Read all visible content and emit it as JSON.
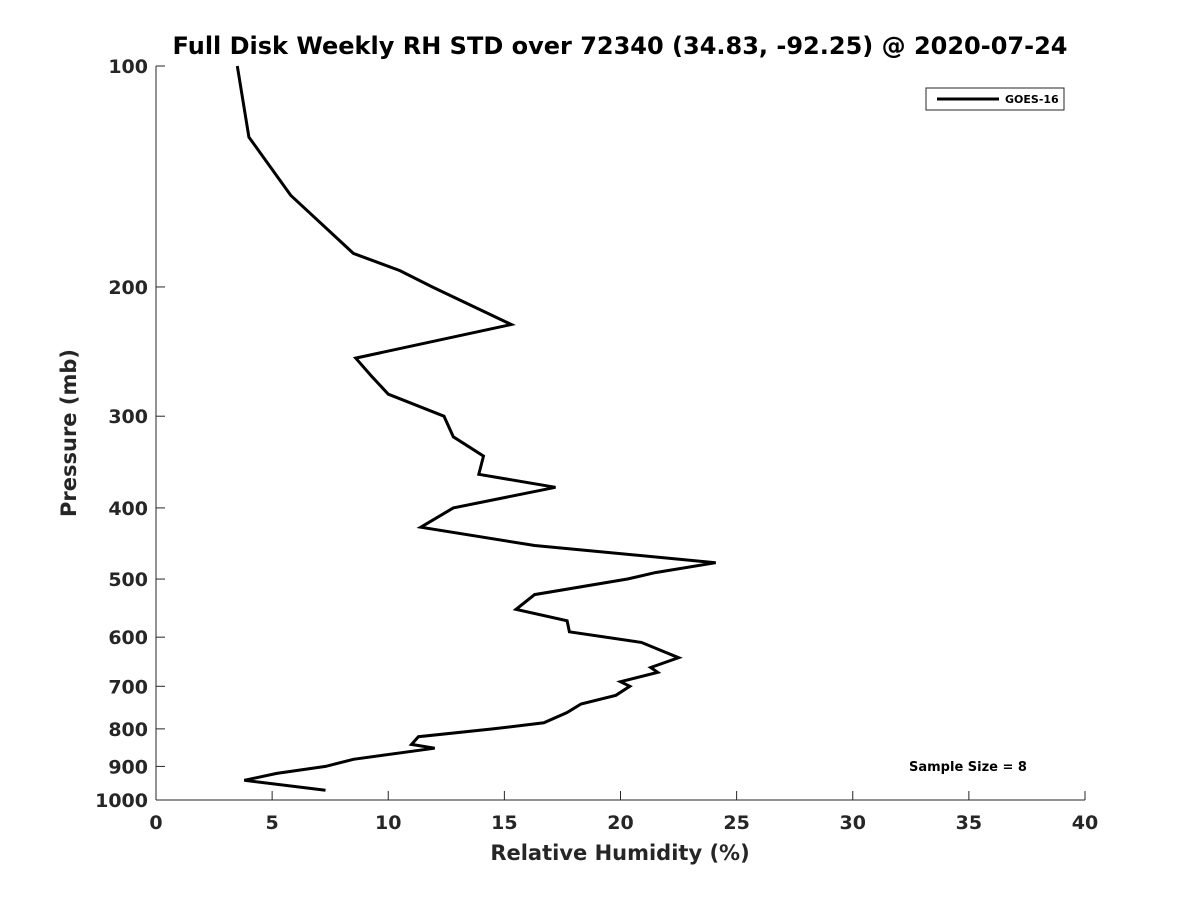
{
  "chart_data": {
    "type": "line",
    "title": "Full Disk Weekly RH STD over 72340 (34.83, -92.25) @ 2020-07-24",
    "xlabel": "Relative Humidity (%)",
    "ylabel": "Pressure (mb)",
    "xlim": [
      0,
      40
    ],
    "ylim": [
      100,
      1000
    ],
    "y_scale": "log",
    "y_reversed": true,
    "grid": false,
    "x_ticks": [
      0,
      5,
      10,
      15,
      20,
      25,
      30,
      35,
      40
    ],
    "y_ticks": [
      100,
      200,
      300,
      400,
      500,
      600,
      700,
      800,
      900,
      1000
    ],
    "legend_position": "top-right",
    "annotation": "Sample Size = 8",
    "series": [
      {
        "name": "GOES-16",
        "color": "#000000",
        "points": [
          [
            3.5,
            100
          ],
          [
            4.0,
            125
          ],
          [
            5.8,
            150
          ],
          [
            8.5,
            180
          ],
          [
            10.5,
            190
          ],
          [
            11.9,
            200
          ],
          [
            15.3,
            225
          ],
          [
            8.6,
            250
          ],
          [
            9.3,
            265
          ],
          [
            10.0,
            280
          ],
          [
            12.4,
            300
          ],
          [
            12.8,
            320
          ],
          [
            14.1,
            340
          ],
          [
            13.9,
            360
          ],
          [
            17.2,
            375
          ],
          [
            12.8,
            400
          ],
          [
            11.4,
            425
          ],
          [
            16.3,
            450
          ],
          [
            24.1,
            475
          ],
          [
            21.5,
            490
          ],
          [
            20.3,
            500
          ],
          [
            16.3,
            525
          ],
          [
            15.5,
            550
          ],
          [
            17.7,
            570
          ],
          [
            17.8,
            590
          ],
          [
            20.9,
            610
          ],
          [
            22.5,
            640
          ],
          [
            21.3,
            660
          ],
          [
            21.6,
            670
          ],
          [
            20.0,
            690
          ],
          [
            20.4,
            700
          ],
          [
            19.8,
            720
          ],
          [
            18.3,
            740
          ],
          [
            17.7,
            760
          ],
          [
            16.7,
            785
          ],
          [
            14.5,
            800
          ],
          [
            11.3,
            820
          ],
          [
            11.0,
            840
          ],
          [
            12.0,
            850
          ],
          [
            8.5,
            880
          ],
          [
            7.3,
            900
          ],
          [
            5.2,
            920
          ],
          [
            3.8,
            940
          ],
          [
            7.3,
            970
          ]
        ]
      }
    ]
  }
}
